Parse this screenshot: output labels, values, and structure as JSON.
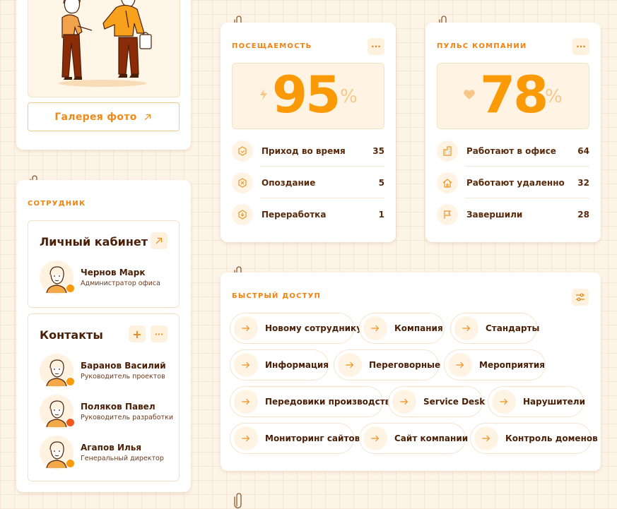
{
  "gallery": {
    "button_label": "Галерея фото"
  },
  "attendance": {
    "title": "Посещаемость",
    "menu": "···",
    "value": "95",
    "unit": "%",
    "rows": [
      {
        "label": "Приход во время",
        "value": "35"
      },
      {
        "label": "Опоздание",
        "value": "5"
      },
      {
        "label": "Переработка",
        "value": "1"
      }
    ]
  },
  "pulse": {
    "title": "Пульс компании",
    "menu": "···",
    "value": "78",
    "unit": "%",
    "rows": [
      {
        "label": "Работают в офисе",
        "value": "64"
      },
      {
        "label": "Работают удаленно",
        "value": "32"
      },
      {
        "label": "Завершили",
        "value": "28"
      }
    ]
  },
  "employee": {
    "title": "Сотрудник",
    "cabinet": {
      "title": "Личный кабинет",
      "name": "Чернов Марк",
      "role": "Администратор офиса"
    },
    "contacts": {
      "title": "Контакты",
      "add": "+",
      "menu": "···",
      "people": [
        {
          "name": "Баранов Василий",
          "role": "Руководитель проектов"
        },
        {
          "name": "Поляков Павел",
          "role": "Руководитель разработки"
        },
        {
          "name": "Агапов Илья",
          "role": "Генеральный директор"
        }
      ]
    }
  },
  "quick_access": {
    "title": "Быстрый доступ",
    "items": [
      "Новому сотруднику",
      "Компания",
      "Стандарты",
      "Информация",
      "Переговорные",
      "Мероприятия",
      "Передовики производства",
      "Service Desk",
      "Нарушители",
      "Мониторинг сайтов",
      "Сайт компании",
      "Контроль доменов"
    ]
  },
  "colors": {
    "accent": "#fb9a07",
    "text": "#4a1f06",
    "soft": "#fff4e3"
  }
}
